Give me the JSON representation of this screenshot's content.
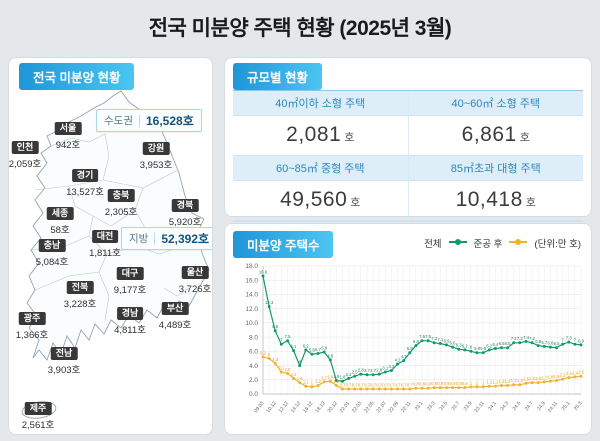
{
  "title": "전국 미분양 주택 현황  (2025년 3월)",
  "map_panel": {
    "header": "전국 미분양 현황",
    "callouts": [
      {
        "label": "수도권",
        "value": "16,528호"
      },
      {
        "label": "지방",
        "value": "52,392호"
      }
    ],
    "regions": [
      {
        "name": "서울",
        "value": "942호"
      },
      {
        "name": "인천",
        "value": "2,059호"
      },
      {
        "name": "강원",
        "value": "3,953호"
      },
      {
        "name": "경기",
        "value": "13,527호"
      },
      {
        "name": "충북",
        "value": "2,305호"
      },
      {
        "name": "경북",
        "value": "5,920호"
      },
      {
        "name": "세종",
        "value": "58호"
      },
      {
        "name": "대전",
        "value": "1,811호"
      },
      {
        "name": "충남",
        "value": "5,084호"
      },
      {
        "name": "대구",
        "value": "9,177호"
      },
      {
        "name": "울산",
        "value": "3,726호"
      },
      {
        "name": "전북",
        "value": "3,228호"
      },
      {
        "name": "부산",
        "value": "4,489호"
      },
      {
        "name": "경남",
        "value": "4,811호"
      },
      {
        "name": "광주",
        "value": "1,366호"
      },
      {
        "name": "전남",
        "value": "3,903호"
      },
      {
        "name": "제주",
        "value": "2,561호"
      }
    ]
  },
  "size_panel": {
    "header": "규모별 현황",
    "cells": [
      {
        "label": "40㎡이하 소형 주택",
        "value": "2,081",
        "unit": "호"
      },
      {
        "label": "40~60㎡ 소형 주택",
        "value": "6,861",
        "unit": "호"
      },
      {
        "label": "60~85㎡ 중형 주택",
        "value": "49,560",
        "unit": "호"
      },
      {
        "label": "85㎡초과 대형 주택",
        "value": "10,418",
        "unit": "호"
      }
    ]
  },
  "chart_panel": {
    "header": "미분양 주택수",
    "unit_note": "(단위:만 호)"
  },
  "chart_data": {
    "type": "line",
    "title": "미분양 주택수",
    "unit": "만 호",
    "grid": true,
    "legend_position": "top-right",
    "ylim": [
      0,
      18
    ],
    "y_tick_step": 2,
    "x_labeled_every": 2,
    "x": [
      "09.03",
      "09.12",
      "10.12",
      "11.12",
      "12.12",
      "13.12",
      "14.12",
      "15.12",
      "16.12",
      "17.12",
      "18.12",
      "19.12",
      "20.12",
      "21.12",
      "22.01",
      "22.02",
      "22.03",
      "22.04",
      "22.05",
      "22.06",
      "22.07",
      "22.08",
      "22.09",
      "22.10",
      "22.11",
      "22.12",
      "23.1",
      "23.2",
      "23.3",
      "23.4",
      "23.5",
      "23.6",
      "23.7",
      "23.8",
      "23.9",
      "23.10",
      "23.11",
      "23.12",
      "24.1",
      "24.2",
      "24.3",
      "24.4",
      "24.5",
      "24.6",
      "24.7",
      "24.8",
      "24.9",
      "24.10",
      "24.11",
      "24.12",
      "25.1",
      "25.2",
      "25.3"
    ],
    "series": [
      {
        "name": "전체",
        "color": "#129b69",
        "label_color": "#1d7d55",
        "values": [
          16.6,
          12.3,
          8.9,
          7.0,
          7.5,
          6.1,
          4.0,
          6.2,
          5.6,
          5.7,
          5.9,
          4.8,
          1.9,
          1.8,
          2.2,
          2.5,
          2.8,
          2.7,
          2.7,
          2.8,
          3.1,
          3.3,
          4.2,
          4.7,
          5.8,
          6.8,
          7.5,
          7.5,
          7.2,
          7.1,
          6.9,
          6.6,
          6.3,
          6.2,
          6.0,
          5.8,
          5.8,
          6.2,
          6.4,
          6.5,
          6.5,
          7.2,
          7.2,
          7.4,
          7.2,
          6.8,
          6.7,
          6.6,
          6.5,
          7.0,
          7.3,
          7.0,
          6.9
        ]
      },
      {
        "name": "준공 후",
        "color": "#f0b233",
        "label_color": "#dd9b1f",
        "values": [
          5.2,
          5.0,
          4.3,
          3.1,
          2.9,
          2.2,
          1.6,
          1.1,
          1.0,
          1.2,
          1.7,
          1.8,
          1.2,
          0.7,
          0.7,
          0.7,
          0.7,
          0.7,
          0.7,
          0.7,
          0.7,
          0.7,
          0.7,
          0.7,
          0.7,
          0.8,
          0.8,
          0.8,
          0.9,
          0.9,
          0.9,
          0.9,
          0.9,
          0.9,
          1.0,
          1.0,
          1.0,
          1.1,
          1.1,
          1.2,
          1.2,
          1.3,
          1.3,
          1.5,
          1.6,
          1.6,
          1.7,
          1.8,
          1.9,
          2.1,
          2.3,
          2.4,
          2.5
        ]
      }
    ]
  }
}
